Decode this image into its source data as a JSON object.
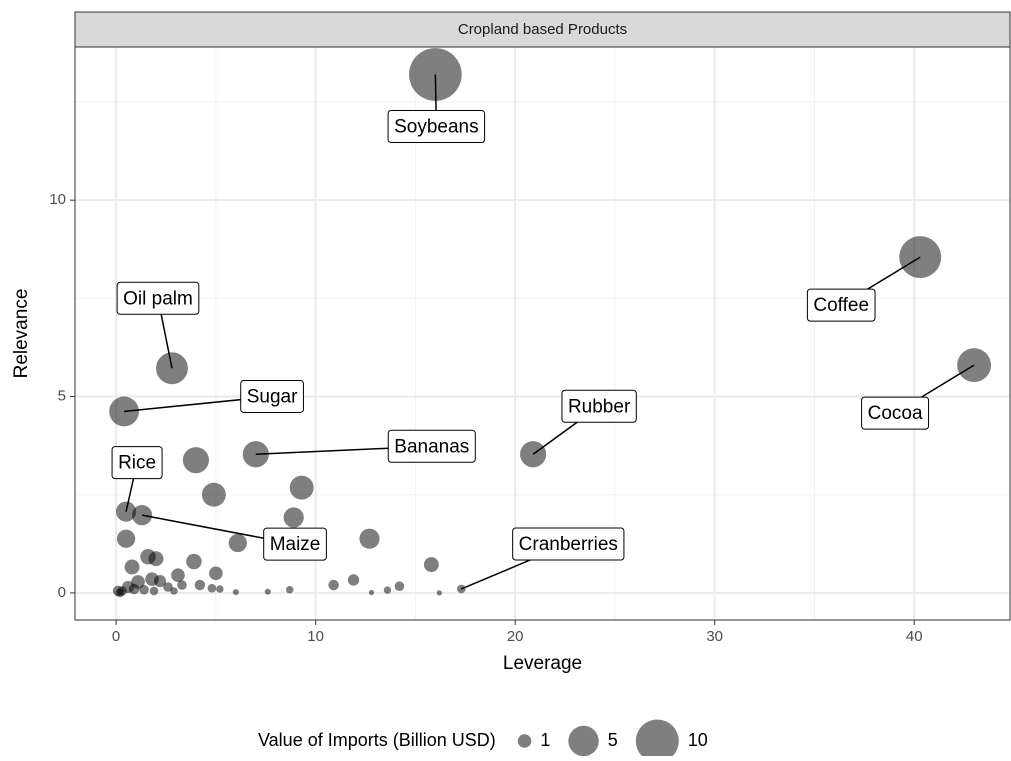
{
  "chart_data": {
    "type": "bubble",
    "facet_label": "Cropland based Products",
    "x_label": "Leverage",
    "y_label": "Relevance",
    "x": [
      16.0,
      40.3,
      43.0,
      2.8,
      0.4,
      20.9,
      7.0,
      0.5,
      1.3,
      17.3,
      4.0,
      4.9,
      9.3,
      8.9,
      12.7,
      6.1,
      0.5,
      1.6,
      2.0,
      3.9,
      0.8,
      15.8,
      1.1,
      1.8,
      3.1,
      5.0,
      2.2,
      0.6,
      2.6,
      3.3,
      4.2,
      4.8,
      5.2,
      10.9,
      11.9,
      14.2,
      13.6,
      8.7,
      7.6,
      12.8,
      16.2,
      0.1,
      0.3,
      0.2,
      1.4,
      1.9,
      0.9,
      2.9,
      6.0
    ],
    "values": [
      13.2,
      8.55,
      5.8,
      5.72,
      4.62,
      3.53,
      3.53,
      2.07,
      1.98,
      0.1,
      3.38,
      2.5,
      2.68,
      1.92,
      1.38,
      1.27,
      1.38,
      0.92,
      0.87,
      0.8,
      0.66,
      0.72,
      0.28,
      0.35,
      0.45,
      0.5,
      0.3,
      0.15,
      0.15,
      0.2,
      0.2,
      0.12,
      0.1,
      0.2,
      0.33,
      0.17,
      0.07,
      0.08,
      0.03,
      0.01,
      0.0,
      0.05,
      0.05,
      0.0,
      0.08,
      0.05,
      0.1,
      0.05,
      0.02
    ],
    "sizes": [
      15,
      9.5,
      6.2,
      5.5,
      4.8,
      3.7,
      3.7,
      2.2,
      2.2,
      0.4,
      3.7,
      3.1,
      3.1,
      2.2,
      2.2,
      1.8,
      1.8,
      1.3,
      1.2,
      1.3,
      1.2,
      1.2,
      1,
      1,
      1,
      1,
      0.8,
      0.8,
      0.5,
      0.5,
      0.6,
      0.4,
      0.3,
      0.6,
      0.7,
      0.5,
      0.3,
      0.3,
      0.2,
      0.15,
      0.15,
      0.6,
      0.5,
      0.4,
      0.5,
      0.4,
      0.6,
      0.3,
      0.2
    ],
    "labels": [
      "Soybeans",
      "Coffee",
      "Cocoa",
      "Oil palm",
      "Sugar",
      "Rubber",
      "Bananas",
      "Rice",
      "Maize",
      "Cranberries",
      null,
      null,
      null,
      null,
      null,
      null,
      null,
      null,
      null,
      null,
      null,
      null,
      null,
      null,
      null,
      null,
      null,
      null,
      null,
      null,
      null,
      null,
      null,
      null,
      null,
      null,
      null,
      null,
      null,
      null,
      null,
      null,
      null,
      null,
      null,
      null,
      null,
      null,
      null
    ],
    "color": "#000000",
    "alpha": 0.5,
    "xlim": [
      -2.06,
      44.8
    ],
    "ylim": [
      -0.69,
      13.9
    ],
    "xticks": [
      0,
      10,
      20,
      30,
      40
    ],
    "yticks": [
      0,
      5,
      10
    ],
    "x_minor_ticks": [
      5,
      15,
      25,
      35
    ],
    "y_minor_ticks": [
      2.5,
      7.5,
      12.5
    ],
    "grid": true,
    "size_legend": {
      "title": "Value of Imports (Billion USD)",
      "values": [
        1,
        5,
        10
      ]
    },
    "legend_position": "bottom"
  }
}
